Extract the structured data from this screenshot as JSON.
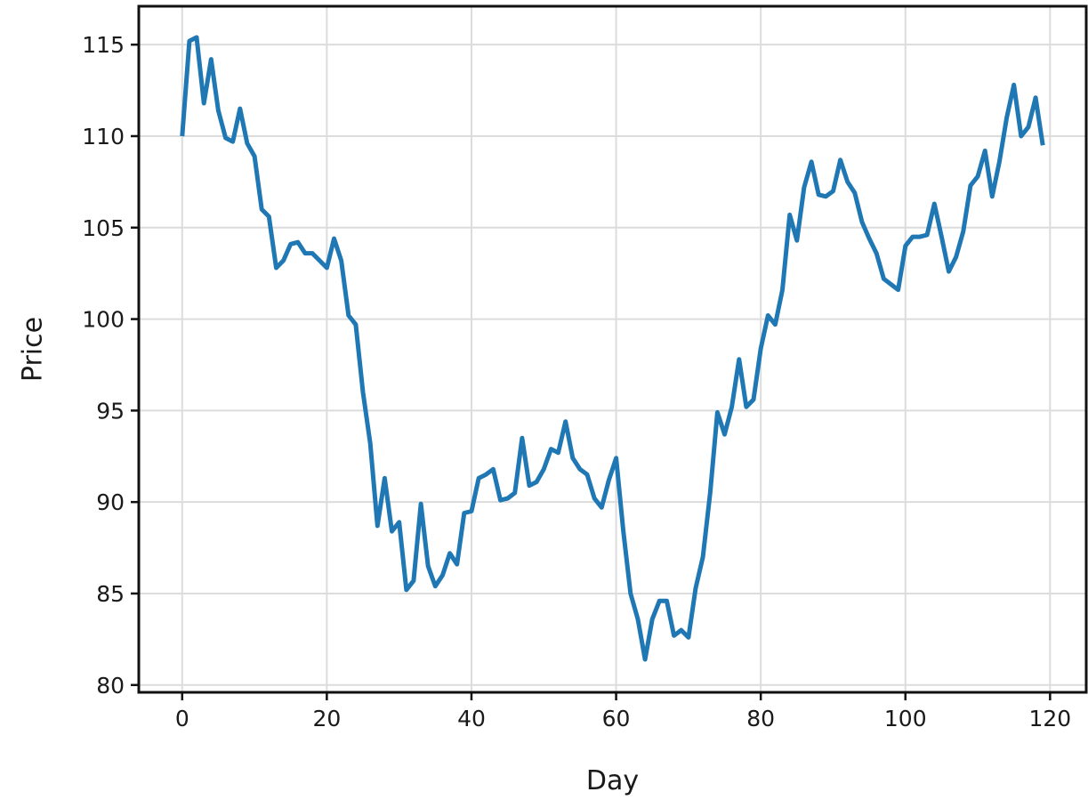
{
  "chart_data": {
    "type": "line",
    "title": "",
    "xlabel": "Day",
    "ylabel": "Price",
    "xlim": [
      -6,
      125
    ],
    "ylim": [
      79.6,
      117.1
    ],
    "grid": true,
    "legend": "none",
    "line_color": "#1f77b4",
    "x_ticks": [
      0,
      20,
      40,
      60,
      80,
      100,
      120
    ],
    "y_ticks": [
      80,
      85,
      90,
      95,
      100,
      105,
      110,
      115
    ],
    "x_tick_labels": [
      "0",
      "20",
      "40",
      "60",
      "80",
      "100",
      "120"
    ],
    "y_tick_labels": [
      "80",
      "85",
      "90",
      "95",
      "100",
      "105",
      "110",
      "115"
    ],
    "series": [
      {
        "x": [
          0,
          1,
          2,
          3,
          4,
          5,
          6,
          7,
          8,
          9,
          10,
          11,
          12,
          13,
          14,
          15,
          16,
          17,
          18,
          19,
          20,
          21,
          22,
          23,
          24,
          25,
          26,
          27,
          28,
          29,
          30,
          31,
          32,
          33,
          34,
          35,
          36,
          37,
          38,
          39,
          40,
          41,
          42,
          43,
          44,
          45,
          46,
          47,
          48,
          49,
          50,
          51,
          52,
          53,
          54,
          55,
          56,
          57,
          58,
          59,
          60,
          61,
          62,
          63,
          64,
          65,
          66,
          67,
          68,
          69,
          70,
          71,
          72,
          73,
          74,
          75,
          76,
          77,
          78,
          79,
          80,
          81,
          82,
          83,
          84,
          85,
          86,
          87,
          88,
          89,
          90,
          91,
          92,
          93,
          94,
          95,
          96,
          97,
          98,
          99,
          100,
          101,
          102,
          103,
          104,
          105,
          106,
          107,
          108,
          109,
          110,
          111,
          112,
          113,
          114,
          115,
          116,
          117,
          118,
          119
        ],
        "values": [
          110.0,
          115.2,
          115.4,
          111.8,
          114.2,
          111.4,
          109.9,
          109.7,
          111.5,
          109.6,
          108.9,
          106.0,
          105.6,
          102.8,
          103.2,
          104.1,
          104.2,
          103.6,
          103.6,
          103.2,
          102.8,
          104.4,
          103.2,
          100.2,
          99.7,
          96.0,
          93.2,
          88.7,
          91.3,
          88.4,
          88.9,
          85.2,
          85.7,
          89.9,
          86.5,
          85.4,
          86.0,
          87.2,
          86.6,
          89.4,
          89.5,
          91.3,
          91.5,
          91.8,
          90.1,
          90.2,
          90.5,
          93.5,
          90.9,
          91.1,
          91.8,
          92.9,
          92.7,
          94.4,
          92.4,
          91.8,
          91.5,
          90.2,
          89.7,
          91.2,
          92.4,
          88.4,
          85.0,
          83.6,
          81.4,
          83.6,
          84.6,
          84.6,
          82.7,
          83.0,
          82.6,
          85.3,
          87.0,
          90.5,
          94.9,
          93.7,
          95.2,
          97.8,
          95.2,
          95.6,
          98.4,
          100.2,
          99.7,
          101.6,
          105.7,
          104.3,
          107.2,
          108.6,
          106.8,
          106.7,
          107.0,
          108.7,
          107.5,
          106.9,
          105.3,
          104.4,
          103.6,
          102.2,
          101.9,
          101.6,
          104.0,
          104.5,
          104.5,
          104.6,
          106.3,
          104.5,
          102.6,
          103.4,
          104.8,
          107.3,
          107.8,
          109.2,
          106.7,
          108.6,
          111.0,
          112.8,
          110.0,
          110.5,
          112.1,
          109.5
        ]
      }
    ]
  }
}
